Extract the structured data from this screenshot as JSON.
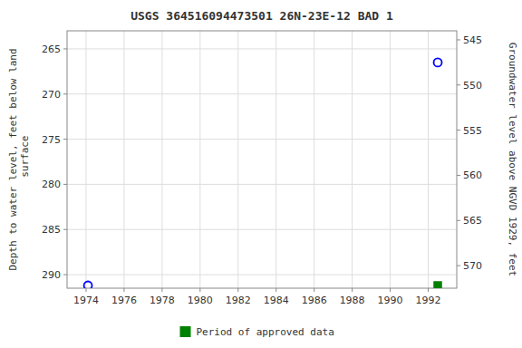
{
  "chart_data": {
    "type": "scatter",
    "title": "USGS 364516094473501 26N-23E-12 BAD 1",
    "y_label": "Depth to water level, feet below land\n surface",
    "y2_label": "Groundwater level above NGVD 1929, feet",
    "xlim": [
      1973.0,
      1993.5
    ],
    "xticks": [
      1974,
      1976,
      1978,
      1980,
      1982,
      1984,
      1986,
      1988,
      1990,
      1992
    ],
    "ylim": [
      291.5,
      263.0
    ],
    "yticks": [
      265,
      270,
      275,
      280,
      285,
      290
    ],
    "y2lim": [
      572.5,
      544.0
    ],
    "y2ticks": [
      570,
      565,
      560,
      555,
      550,
      545
    ],
    "grid": true,
    "legend": "bottom",
    "series": [
      {
        "color": "#0000ff",
        "marker": "open-circle",
        "x": [
          1974.1,
          1992.5
        ],
        "values": [
          291.2,
          266.5
        ]
      },
      {
        "name": "Period of approved data",
        "color": "#008000",
        "marker": "square",
        "x": [
          1992.5
        ],
        "values": [
          291.2
        ]
      }
    ]
  }
}
